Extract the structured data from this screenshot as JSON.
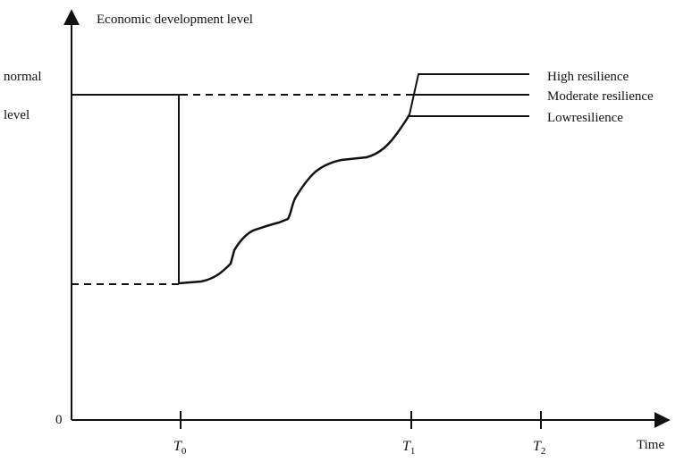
{
  "diagram": {
    "y_axis_label": "Economic development level",
    "x_axis_label": "Time",
    "origin_label": "0",
    "normal_level_label_line1": "normal",
    "normal_level_label_line2": "level",
    "ticks": [
      {
        "main": "T",
        "sub": "0"
      },
      {
        "main": "T",
        "sub": "1"
      },
      {
        "main": "T",
        "sub": "2"
      }
    ],
    "legend": {
      "high": "High resilience",
      "moderate": "Moderate resilience",
      "low": "Lowresilience"
    }
  }
}
